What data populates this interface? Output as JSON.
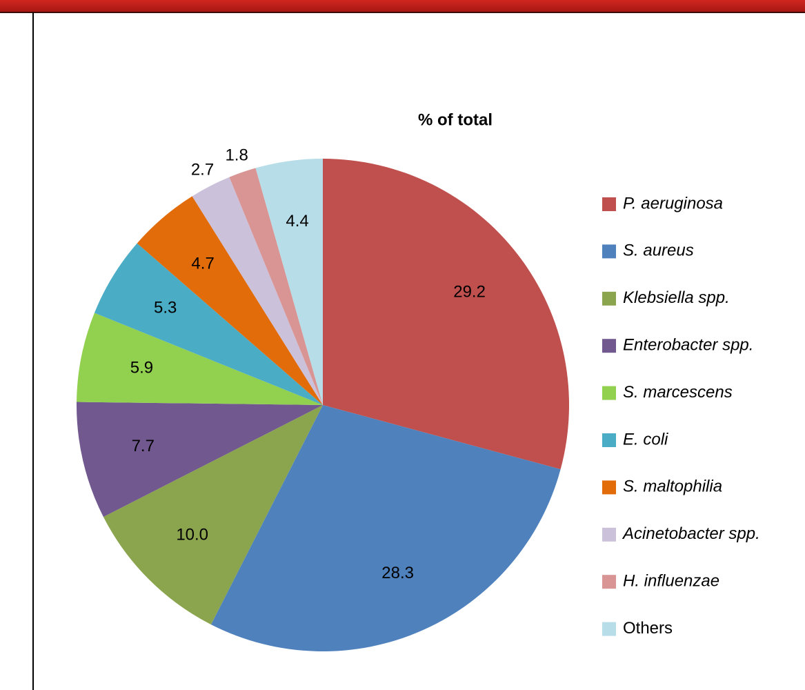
{
  "chart_data": {
    "type": "pie",
    "title": "% of total",
    "categories": [
      "P. aeruginosa",
      "S. aureus",
      "Klebsiella spp.",
      "Enterobacter spp.",
      "S. marcescens",
      "E. coli",
      "S. maltophilia",
      "Acinetobacter spp.",
      "H. influenzae",
      "Others"
    ],
    "values": [
      29.2,
      28.3,
      10.0,
      7.7,
      5.9,
      5.3,
      4.7,
      2.7,
      1.8,
      4.4
    ],
    "value_labels": [
      "29.2",
      "28.3",
      "10.0",
      "7.7",
      "5.9",
      "5.3",
      "4.7",
      "2.7",
      "1.8",
      "4.4"
    ],
    "colors": [
      "#c0504d",
      "#4f81bd",
      "#8ba54e",
      "#71588f",
      "#92d050",
      "#4bacc6",
      "#e36c0a",
      "#ccc1da",
      "#d99594",
      "#b7dde8"
    ],
    "legend": "right"
  }
}
